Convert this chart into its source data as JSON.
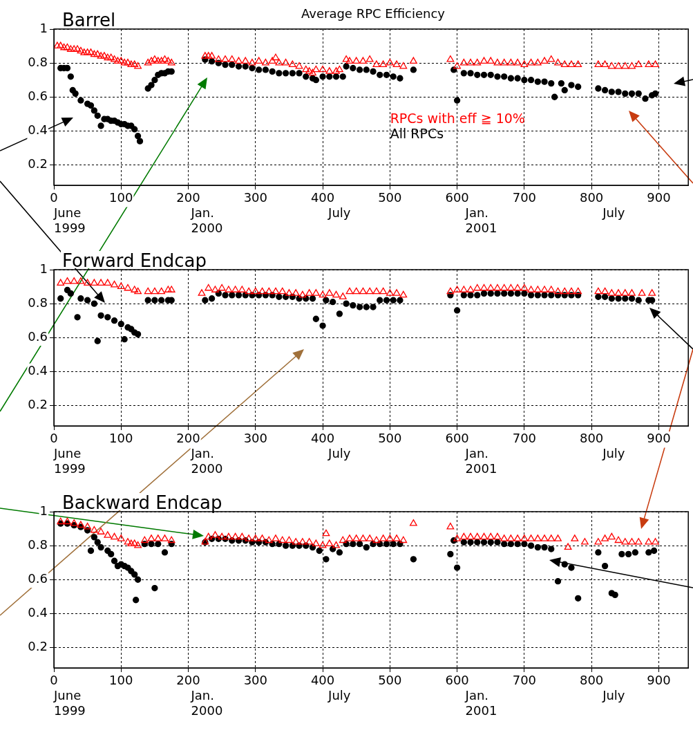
{
  "chart_data": [
    {
      "type": "scatter",
      "title": "Barrel",
      "annotations": [
        "Average RPC Efficiency",
        "June 1999",
        "Jan. 2000",
        "July",
        "Jan. 2001",
        "July"
      ],
      "xlim": [
        0,
        944
      ],
      "xticks": [
        0,
        100,
        200,
        300,
        400,
        500,
        600,
        700,
        800,
        900
      ],
      "ylim": [
        0.08,
        1
      ],
      "yticks": [
        0.2,
        0.4,
        0.6,
        0.8,
        1
      ],
      "grid": true,
      "series": [
        {
          "name": "RPCs with eff ≧ 10%",
          "color": "#ff0000",
          "marker": "triangle",
          "x": [
            5,
            10,
            15,
            20,
            25,
            30,
            35,
            40,
            45,
            50,
            55,
            60,
            65,
            70,
            75,
            80,
            85,
            90,
            95,
            100,
            105,
            110,
            115,
            120,
            125,
            140,
            145,
            150,
            155,
            160,
            165,
            170,
            175,
            225,
            230,
            235,
            245,
            255,
            265,
            275,
            285,
            295,
            305,
            315,
            325,
            330,
            335,
            345,
            355,
            365,
            375,
            380,
            385,
            390,
            400,
            410,
            420,
            425,
            435,
            440,
            450,
            460,
            470,
            480,
            490,
            500,
            510,
            520,
            535,
            590,
            600,
            610,
            620,
            630,
            640,
            650,
            660,
            670,
            680,
            690,
            700,
            710,
            720,
            730,
            740,
            750,
            760,
            770,
            780,
            810,
            820,
            830,
            840,
            850,
            860,
            870,
            885,
            895
          ],
          "values": [
            0.9,
            0.9,
            0.89,
            0.89,
            0.88,
            0.88,
            0.88,
            0.87,
            0.86,
            0.86,
            0.86,
            0.85,
            0.85,
            0.84,
            0.84,
            0.83,
            0.83,
            0.82,
            0.81,
            0.81,
            0.8,
            0.8,
            0.79,
            0.79,
            0.78,
            0.8,
            0.81,
            0.82,
            0.81,
            0.81,
            0.82,
            0.81,
            0.8,
            0.84,
            0.84,
            0.84,
            0.82,
            0.82,
            0.82,
            0.81,
            0.81,
            0.8,
            0.81,
            0.8,
            0.81,
            0.83,
            0.8,
            0.8,
            0.79,
            0.78,
            0.76,
            0.75,
            0.74,
            0.76,
            0.76,
            0.75,
            0.75,
            0.76,
            0.82,
            0.81,
            0.81,
            0.81,
            0.82,
            0.79,
            0.79,
            0.8,
            0.79,
            0.78,
            0.81,
            0.82,
            0.78,
            0.8,
            0.8,
            0.8,
            0.81,
            0.81,
            0.8,
            0.8,
            0.8,
            0.8,
            0.79,
            0.8,
            0.8,
            0.81,
            0.82,
            0.8,
            0.79,
            0.79,
            0.79,
            0.79,
            0.79,
            0.78,
            0.78,
            0.78,
            0.78,
            0.79,
            0.79,
            0.79
          ]
        },
        {
          "name": "All RPCs",
          "color": "#000000",
          "marker": "circle",
          "x": [
            10,
            15,
            20,
            25,
            28,
            32,
            40,
            50,
            55,
            60,
            65,
            70,
            75,
            80,
            85,
            90,
            95,
            100,
            105,
            110,
            115,
            120,
            125,
            128,
            140,
            145,
            150,
            155,
            160,
            165,
            170,
            175,
            225,
            235,
            245,
            255,
            265,
            275,
            285,
            295,
            305,
            315,
            325,
            335,
            345,
            355,
            365,
            375,
            385,
            390,
            400,
            410,
            420,
            430,
            435,
            445,
            455,
            465,
            475,
            485,
            495,
            505,
            515,
            535,
            595,
            600,
            610,
            620,
            630,
            640,
            650,
            660,
            670,
            680,
            690,
            700,
            710,
            720,
            730,
            740,
            745,
            755,
            760,
            770,
            780,
            810,
            820,
            830,
            840,
            850,
            860,
            870,
            880,
            890,
            895
          ],
          "values": [
            0.77,
            0.77,
            0.77,
            0.72,
            0.64,
            0.62,
            0.58,
            0.56,
            0.55,
            0.52,
            0.49,
            0.43,
            0.47,
            0.47,
            0.46,
            0.46,
            0.45,
            0.44,
            0.44,
            0.43,
            0.43,
            0.41,
            0.37,
            0.34,
            0.65,
            0.67,
            0.7,
            0.73,
            0.74,
            0.74,
            0.75,
            0.75,
            0.82,
            0.81,
            0.8,
            0.79,
            0.79,
            0.78,
            0.78,
            0.77,
            0.76,
            0.76,
            0.75,
            0.74,
            0.74,
            0.74,
            0.74,
            0.72,
            0.71,
            0.7,
            0.72,
            0.72,
            0.72,
            0.72,
            0.78,
            0.77,
            0.76,
            0.76,
            0.75,
            0.73,
            0.73,
            0.72,
            0.71,
            0.76,
            0.76,
            0.58,
            0.74,
            0.74,
            0.73,
            0.73,
            0.73,
            0.72,
            0.72,
            0.71,
            0.71,
            0.7,
            0.7,
            0.69,
            0.69,
            0.68,
            0.6,
            0.68,
            0.64,
            0.67,
            0.66,
            0.65,
            0.64,
            0.63,
            0.63,
            0.62,
            0.62,
            0.62,
            0.59,
            0.61,
            0.62
          ]
        }
      ]
    },
    {
      "type": "scatter",
      "title": "Forward Endcap",
      "annotations": [
        "June 1999",
        "Jan. 2000",
        "July",
        "Jan. 2001",
        "July"
      ],
      "xlim": [
        0,
        944
      ],
      "xticks": [
        0,
        100,
        200,
        300,
        400,
        500,
        600,
        700,
        800,
        900
      ],
      "ylim": [
        0.08,
        1
      ],
      "yticks": [
        0.2,
        0.4,
        0.6,
        0.8,
        1
      ],
      "grid": true,
      "series": [
        {
          "color": "#ff0000",
          "marker": "triangle",
          "x": [
            10,
            20,
            30,
            40,
            50,
            60,
            70,
            80,
            90,
            100,
            110,
            120,
            125,
            140,
            150,
            160,
            170,
            175,
            220,
            230,
            240,
            250,
            260,
            270,
            280,
            290,
            300,
            310,
            320,
            330,
            340,
            350,
            360,
            370,
            380,
            390,
            400,
            410,
            420,
            430,
            440,
            450,
            460,
            470,
            480,
            490,
            500,
            510,
            520,
            590,
            600,
            610,
            620,
            630,
            640,
            650,
            660,
            670,
            680,
            690,
            700,
            710,
            720,
            730,
            740,
            750,
            760,
            770,
            780,
            810,
            820,
            830,
            840,
            850,
            860,
            875,
            890
          ],
          "values": [
            0.92,
            0.93,
            0.93,
            0.93,
            0.92,
            0.92,
            0.92,
            0.92,
            0.91,
            0.9,
            0.89,
            0.88,
            0.87,
            0.87,
            0.87,
            0.87,
            0.88,
            0.88,
            0.86,
            0.89,
            0.88,
            0.89,
            0.88,
            0.88,
            0.88,
            0.87,
            0.87,
            0.87,
            0.87,
            0.87,
            0.87,
            0.86,
            0.86,
            0.85,
            0.86,
            0.86,
            0.85,
            0.86,
            0.85,
            0.84,
            0.87,
            0.87,
            0.87,
            0.87,
            0.87,
            0.87,
            0.86,
            0.86,
            0.85,
            0.87,
            0.88,
            0.88,
            0.88,
            0.89,
            0.89,
            0.89,
            0.89,
            0.89,
            0.89,
            0.89,
            0.89,
            0.88,
            0.88,
            0.88,
            0.88,
            0.87,
            0.87,
            0.87,
            0.87,
            0.87,
            0.87,
            0.86,
            0.86,
            0.86,
            0.86,
            0.86,
            0.86
          ]
        },
        {
          "color": "#000000",
          "marker": "circle",
          "x": [
            10,
            20,
            25,
            35,
            40,
            50,
            60,
            65,
            70,
            80,
            90,
            100,
            105,
            110,
            115,
            120,
            125,
            140,
            150,
            160,
            170,
            175,
            225,
            235,
            245,
            255,
            265,
            275,
            285,
            295,
            305,
            315,
            325,
            335,
            345,
            355,
            365,
            375,
            385,
            390,
            400,
            405,
            415,
            425,
            435,
            445,
            455,
            465,
            475,
            485,
            495,
            505,
            515,
            590,
            600,
            610,
            620,
            630,
            640,
            650,
            660,
            670,
            680,
            690,
            700,
            710,
            720,
            730,
            740,
            750,
            760,
            770,
            780,
            810,
            820,
            830,
            840,
            850,
            860,
            870,
            885,
            890
          ],
          "values": [
            0.83,
            0.88,
            0.86,
            0.72,
            0.83,
            0.82,
            0.8,
            0.58,
            0.73,
            0.72,
            0.7,
            0.68,
            0.59,
            0.66,
            0.65,
            0.63,
            0.62,
            0.82,
            0.82,
            0.82,
            0.82,
            0.82,
            0.82,
            0.83,
            0.86,
            0.85,
            0.85,
            0.85,
            0.85,
            0.85,
            0.85,
            0.85,
            0.85,
            0.84,
            0.84,
            0.84,
            0.83,
            0.83,
            0.83,
            0.71,
            0.67,
            0.82,
            0.81,
            0.74,
            0.8,
            0.79,
            0.78,
            0.78,
            0.78,
            0.82,
            0.82,
            0.82,
            0.82,
            0.85,
            0.76,
            0.85,
            0.85,
            0.85,
            0.86,
            0.86,
            0.86,
            0.86,
            0.86,
            0.86,
            0.86,
            0.85,
            0.85,
            0.85,
            0.85,
            0.85,
            0.85,
            0.85,
            0.85,
            0.84,
            0.84,
            0.83,
            0.83,
            0.83,
            0.83,
            0.82,
            0.82,
            0.82
          ]
        }
      ]
    },
    {
      "type": "scatter",
      "title": "Backward Endcap",
      "annotations": [
        "June 1999",
        "Jan. 2000",
        "July",
        "Jan. 2001",
        "July"
      ],
      "xlim": [
        0,
        944
      ],
      "xticks": [
        0,
        100,
        200,
        300,
        400,
        500,
        600,
        700,
        800,
        900
      ],
      "ylim": [
        0.08,
        1
      ],
      "yticks": [
        0.2,
        0.4,
        0.6,
        0.8,
        1
      ],
      "grid": true,
      "series": [
        {
          "color": "#ff0000",
          "marker": "triangle",
          "x": [
            10,
            20,
            30,
            40,
            50,
            60,
            70,
            80,
            90,
            100,
            110,
            115,
            120,
            125,
            135,
            145,
            155,
            165,
            175,
            225,
            230,
            240,
            250,
            260,
            270,
            280,
            290,
            300,
            310,
            320,
            330,
            340,
            350,
            360,
            370,
            380,
            390,
            400,
            405,
            410,
            420,
            430,
            440,
            450,
            460,
            470,
            480,
            490,
            500,
            510,
            520,
            535,
            590,
            600,
            610,
            620,
            630,
            640,
            650,
            660,
            670,
            680,
            690,
            700,
            710,
            720,
            730,
            740,
            750,
            765,
            775,
            790,
            810,
            820,
            830,
            840,
            850,
            860,
            870,
            885,
            895
          ],
          "values": [
            0.94,
            0.94,
            0.93,
            0.92,
            0.91,
            0.89,
            0.88,
            0.86,
            0.85,
            0.84,
            0.82,
            0.81,
            0.81,
            0.8,
            0.83,
            0.84,
            0.84,
            0.84,
            0.83,
            0.82,
            0.85,
            0.86,
            0.85,
            0.85,
            0.85,
            0.85,
            0.84,
            0.84,
            0.84,
            0.83,
            0.84,
            0.83,
            0.83,
            0.82,
            0.82,
            0.82,
            0.81,
            0.8,
            0.87,
            0.81,
            0.8,
            0.83,
            0.84,
            0.84,
            0.84,
            0.84,
            0.83,
            0.84,
            0.84,
            0.84,
            0.83,
            0.93,
            0.91,
            0.84,
            0.85,
            0.85,
            0.85,
            0.85,
            0.85,
            0.85,
            0.84,
            0.84,
            0.84,
            0.84,
            0.84,
            0.84,
            0.84,
            0.84,
            0.84,
            0.79,
            0.84,
            0.82,
            0.82,
            0.84,
            0.85,
            0.83,
            0.82,
            0.82,
            0.82,
            0.82,
            0.82
          ]
        },
        {
          "color": "#000000",
          "marker": "circle",
          "x": [
            10,
            20,
            30,
            40,
            50,
            55,
            60,
            65,
            70,
            80,
            85,
            90,
            95,
            100,
            105,
            110,
            115,
            120,
            122,
            125,
            135,
            145,
            150,
            155,
            165,
            175,
            225,
            235,
            245,
            255,
            265,
            275,
            285,
            295,
            305,
            315,
            325,
            335,
            345,
            355,
            365,
            375,
            385,
            395,
            405,
            415,
            425,
            435,
            445,
            455,
            465,
            475,
            485,
            495,
            505,
            515,
            535,
            590,
            595,
            600,
            610,
            620,
            630,
            640,
            650,
            660,
            670,
            680,
            690,
            700,
            710,
            720,
            730,
            740,
            750,
            760,
            770,
            780,
            810,
            820,
            830,
            835,
            845,
            855,
            865,
            885,
            893
          ],
          "values": [
            0.93,
            0.93,
            0.92,
            0.91,
            0.89,
            0.77,
            0.85,
            0.82,
            0.79,
            0.77,
            0.75,
            0.71,
            0.68,
            0.69,
            0.68,
            0.67,
            0.65,
            0.63,
            0.48,
            0.6,
            0.81,
            0.81,
            0.55,
            0.81,
            0.76,
            0.81,
            0.82,
            0.84,
            0.84,
            0.84,
            0.83,
            0.83,
            0.83,
            0.82,
            0.82,
            0.82,
            0.81,
            0.81,
            0.8,
            0.8,
            0.8,
            0.8,
            0.79,
            0.77,
            0.72,
            0.78,
            0.76,
            0.81,
            0.81,
            0.81,
            0.79,
            0.81,
            0.81,
            0.81,
            0.81,
            0.81,
            0.72,
            0.75,
            0.83,
            0.67,
            0.82,
            0.82,
            0.82,
            0.82,
            0.82,
            0.82,
            0.81,
            0.81,
            0.81,
            0.81,
            0.8,
            0.79,
            0.79,
            0.78,
            0.59,
            0.69,
            0.67,
            0.49,
            0.76,
            0.68,
            0.52,
            0.51,
            0.75,
            0.75,
            0.76,
            0.76,
            0.77
          ]
        }
      ]
    }
  ]
}
